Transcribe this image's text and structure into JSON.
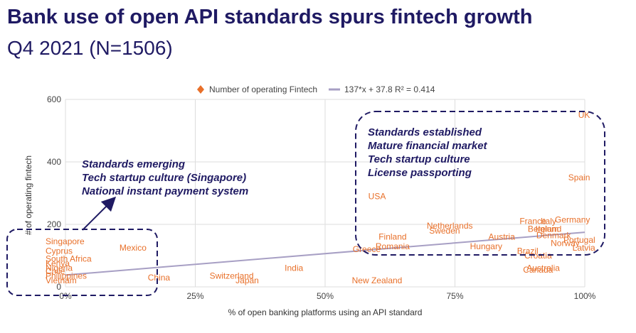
{
  "header": {
    "title": "Bank use of open API standards spurs fintech growth",
    "subtitle": "Q4 2021 (N=1506)"
  },
  "colors": {
    "title": "#1f1a63",
    "points": "#e8702a",
    "trendline": "#a79fc4",
    "annotation": "#1f1a63",
    "grid": "#dddddd"
  },
  "chart_data": {
    "type": "scatter",
    "title": "",
    "xlabel": "% of open banking platforms using an API standard",
    "ylabel": "# of operating fintech",
    "xlim": [
      0,
      100
    ],
    "ylim": [
      0,
      600
    ],
    "x_ticks": [
      "0%",
      "25%",
      "50%",
      "75%",
      "100%"
    ],
    "y_ticks": [
      "0",
      "200",
      "400",
      "600"
    ],
    "grid": true,
    "legend_position": "top-center",
    "series": [
      {
        "name": "Number of operating Fintech",
        "marker": "diamond",
        "points": [
          {
            "label": "UK",
            "x": 98,
            "y": 550
          },
          {
            "label": "Spain",
            "x": 98,
            "y": 350
          },
          {
            "label": "Germany",
            "x": 98,
            "y": 215
          },
          {
            "label": "France",
            "x": 90,
            "y": 210
          },
          {
            "label": "Italy",
            "x": 93,
            "y": 210
          },
          {
            "label": "Belgium",
            "x": 92,
            "y": 185
          },
          {
            "label": "Ireland",
            "x": 93,
            "y": 185
          },
          {
            "label": "Denmark",
            "x": 94,
            "y": 165
          },
          {
            "label": "Portugal",
            "x": 99,
            "y": 150
          },
          {
            "label": "Norway",
            "x": 96,
            "y": 140
          },
          {
            "label": "Latvia",
            "x": 99,
            "y": 125
          },
          {
            "label": "Brazil",
            "x": 89,
            "y": 115
          },
          {
            "label": "Croatia",
            "x": 91,
            "y": 100
          },
          {
            "label": "Australia",
            "x": 92,
            "y": 60
          },
          {
            "label": "Canada",
            "x": 91,
            "y": 55
          },
          {
            "label": "Austria",
            "x": 84,
            "y": 160
          },
          {
            "label": "Hungary",
            "x": 81,
            "y": 130
          },
          {
            "label": "Netherlands",
            "x": 74,
            "y": 195
          },
          {
            "label": "Sweden",
            "x": 73,
            "y": 180
          },
          {
            "label": "Finland",
            "x": 63,
            "y": 160
          },
          {
            "label": "Romania",
            "x": 63,
            "y": 130
          },
          {
            "label": "Greece",
            "x": 58,
            "y": 120
          },
          {
            "label": "USA",
            "x": 60,
            "y": 290
          },
          {
            "label": "New Zealand",
            "x": 60,
            "y": 20
          },
          {
            "label": "India",
            "x": 44,
            "y": 60
          },
          {
            "label": "Switzerland",
            "x": 32,
            "y": 35
          },
          {
            "label": "Japan",
            "x": 35,
            "y": 20
          },
          {
            "label": "China",
            "x": 18,
            "y": 30
          },
          {
            "label": "Mexico",
            "x": 13,
            "y": 125
          },
          {
            "label": "Singapore",
            "x": 0,
            "y": 145
          },
          {
            "label": "Cyprus",
            "x": 0,
            "y": 115
          },
          {
            "label": "South Africa",
            "x": 0,
            "y": 90
          },
          {
            "label": "Kenya",
            "x": 0,
            "y": 75
          },
          {
            "label": "Nigeria",
            "x": 0,
            "y": 60
          },
          {
            "label": "Chile",
            "x": 0,
            "y": 50
          },
          {
            "label": "Philippines",
            "x": 0,
            "y": 35
          },
          {
            "label": "Vietnam",
            "x": 0,
            "y": 20
          }
        ]
      }
    ],
    "trendline": {
      "name": "137*x + 37.8 R² = 0.414",
      "slope": 137,
      "intercept": 37.8,
      "x_range": [
        0,
        100
      ]
    },
    "annotations": [
      {
        "lines": [
          "Standards emerging",
          "Tech startup culture (Singapore)",
          "National instant payment system"
        ]
      },
      {
        "lines": [
          "Standards established",
          "Mature financial market",
          "Tech startup culture",
          "License passporting"
        ]
      }
    ]
  }
}
